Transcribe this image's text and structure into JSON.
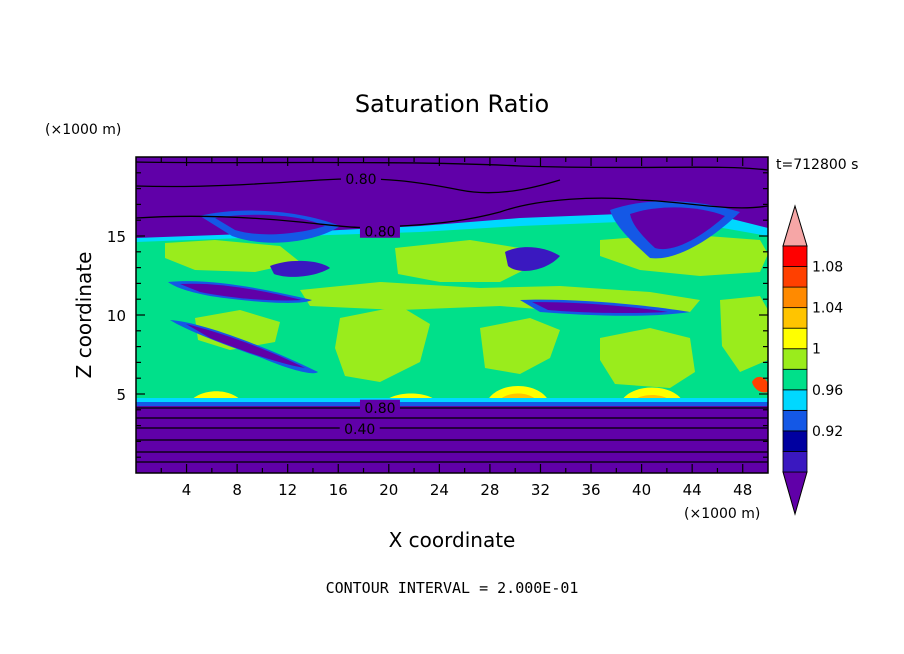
{
  "chart_data": {
    "type": "heatmap",
    "title": "Saturation Ratio",
    "xlabel": "X coordinate",
    "ylabel": "Z coordinate",
    "x_units": "(×1000 m)",
    "y_units": "(×1000 m)",
    "time_label": "t=712800 s",
    "footer": "CONTOUR INTERVAL = 2.000E-01",
    "xlim": [
      0,
      50
    ],
    "ylim": [
      0,
      20
    ],
    "x_ticks": [
      4,
      8,
      12,
      16,
      20,
      24,
      28,
      32,
      36,
      40,
      44,
      48
    ],
    "y_ticks": [
      5,
      10,
      15
    ],
    "colorbar": {
      "tick_labels": [
        "0.92",
        "0.96",
        "1",
        "1.04",
        "1.08"
      ],
      "colors": [
        "#6000a8",
        "#3a18c0",
        "#0000a0",
        "#1458e6",
        "#00d8ff",
        "#00e08a",
        "#9aec1c",
        "#ffff00",
        "#ffc400",
        "#ff8a00",
        "#ff4000",
        "#ff0000",
        "#f6a6a6"
      ]
    },
    "contour_labels": [
      {
        "text": "0.80",
        "x": 17.8,
        "z": 18.6
      },
      {
        "text": "0.80",
        "x": 19.3,
        "z": 15.3
      },
      {
        "text": "0.80",
        "x": 19.3,
        "z": 4.1
      },
      {
        "text": "0.40",
        "x": 17.7,
        "z": 2.8
      }
    ]
  }
}
